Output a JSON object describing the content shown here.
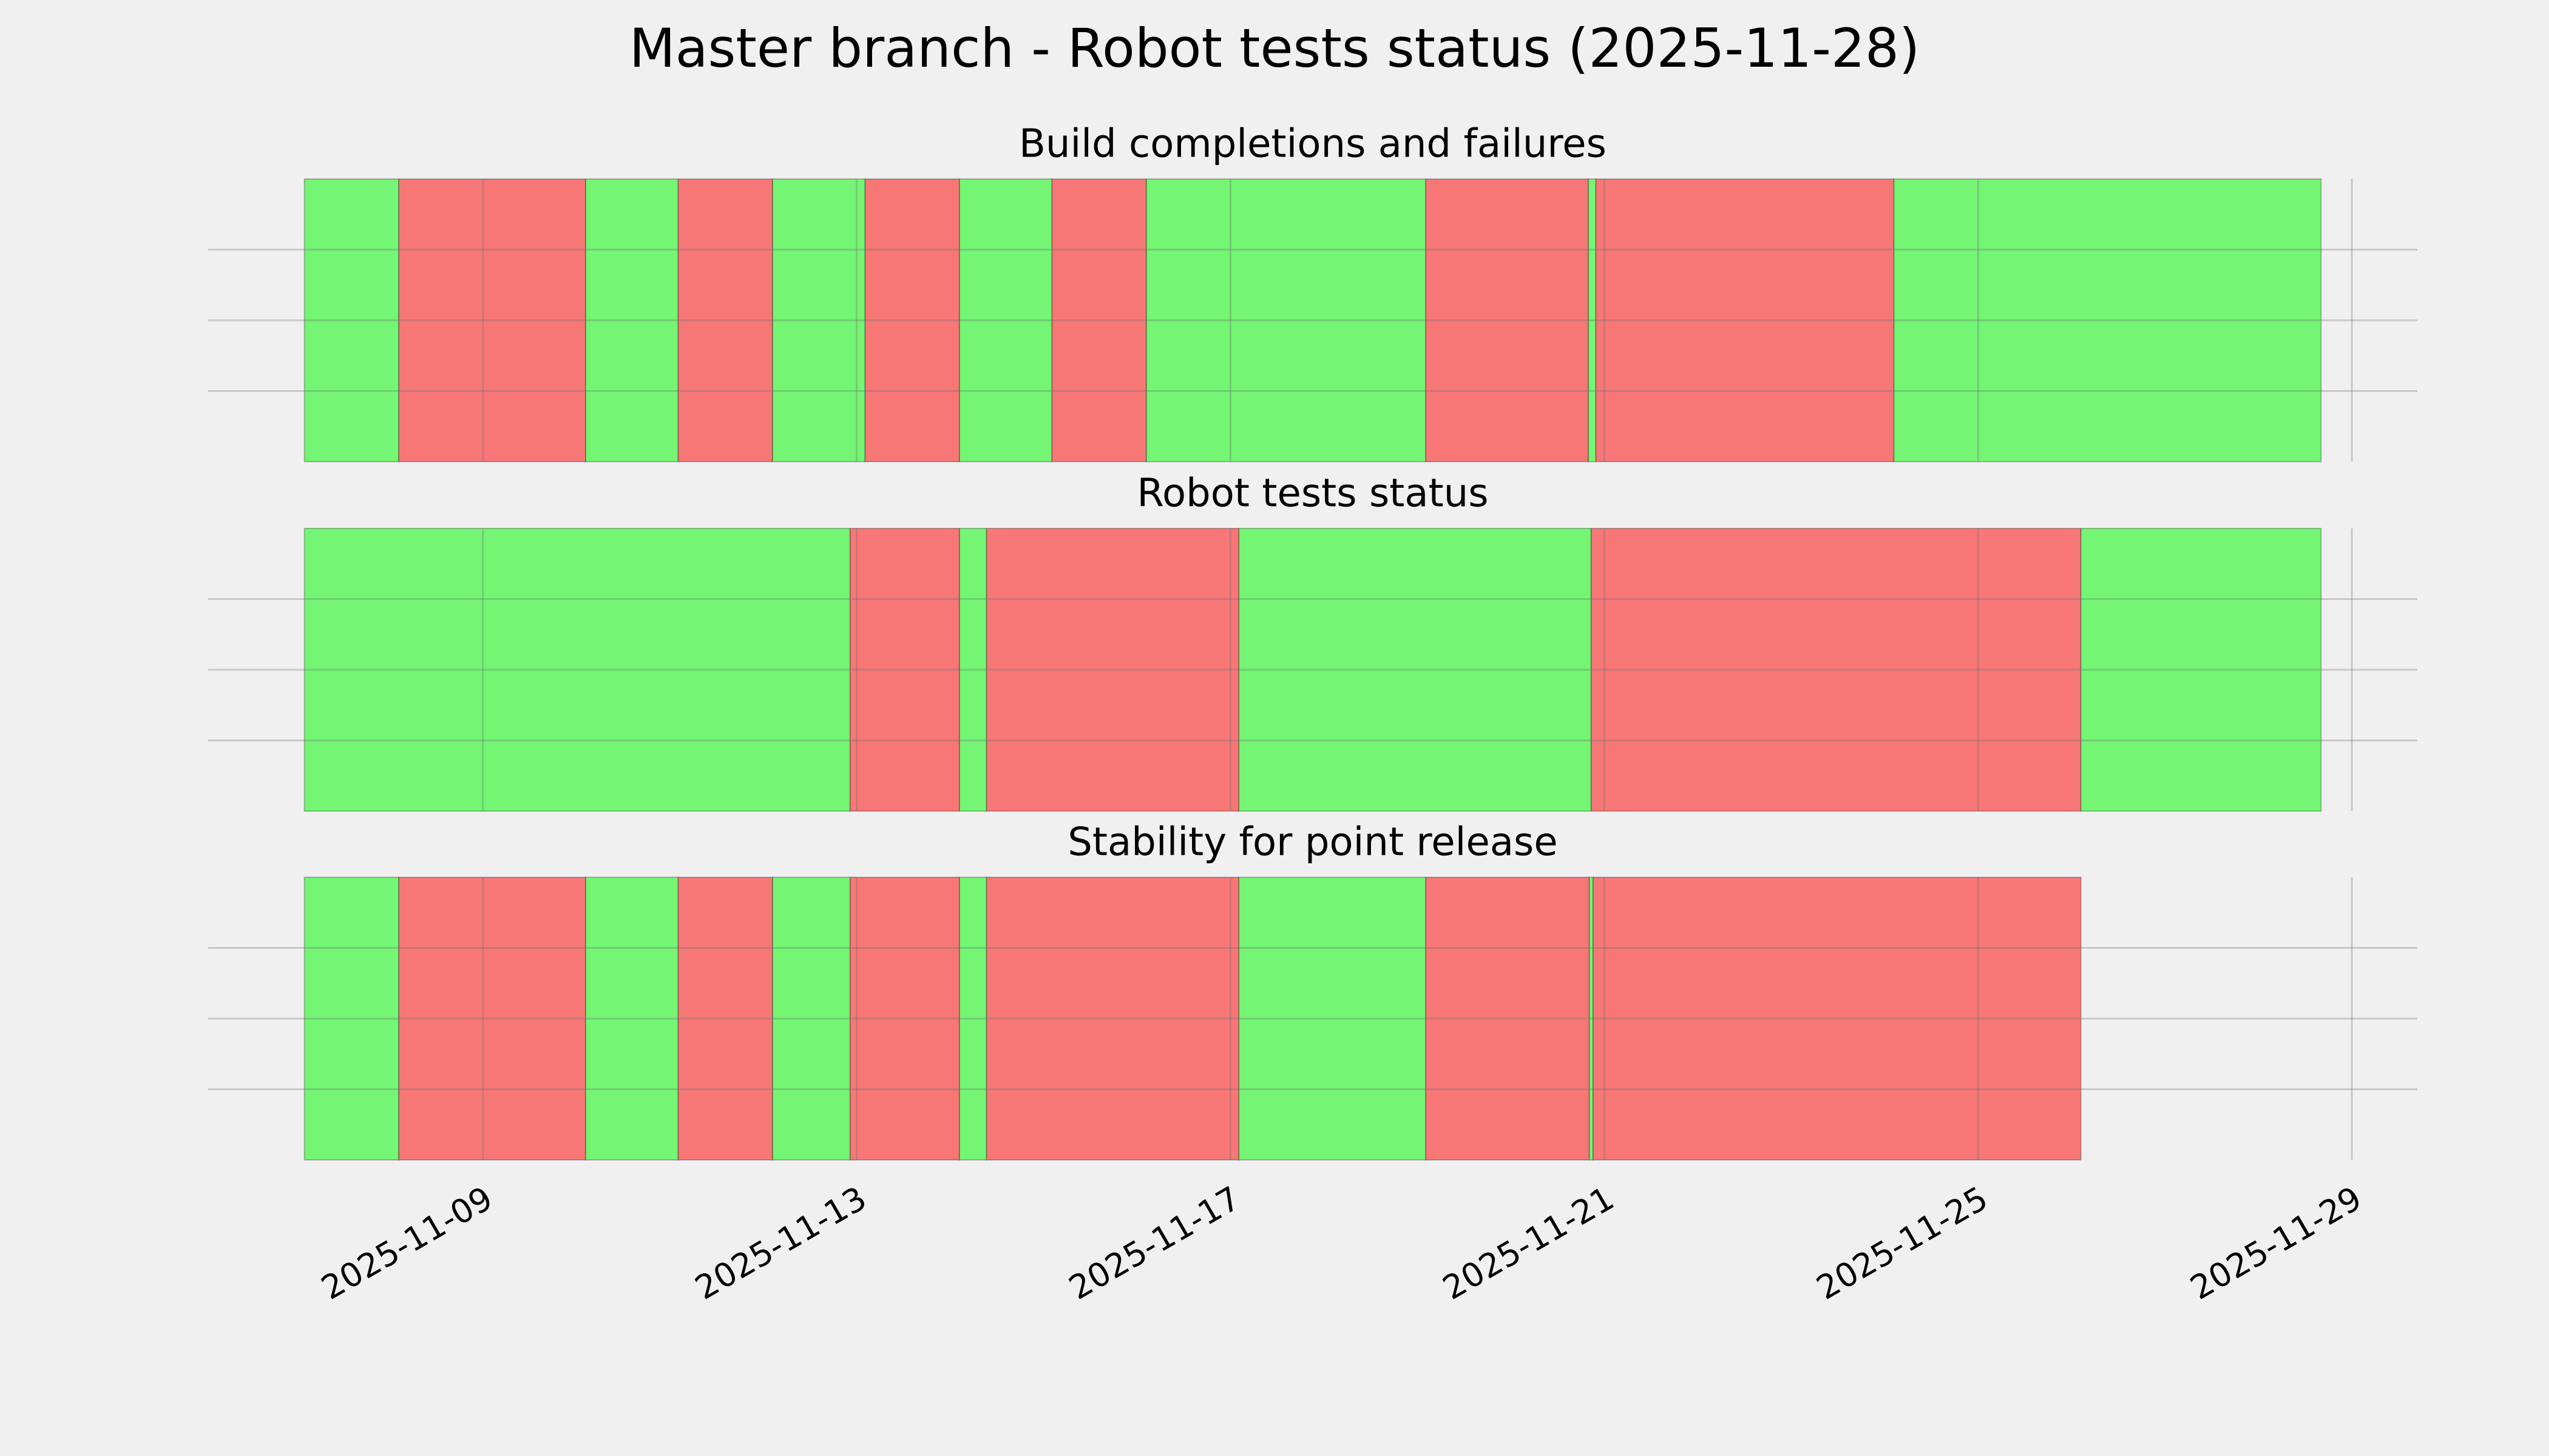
{
  "title": "Master branch - Robot tests status (2025-11-28)",
  "chart_data": [
    {
      "type": "timeline",
      "title": "Build completions and failures",
      "starts": [
        7.09,
        8.1,
        10.1,
        11.09,
        12.1,
        13.09,
        14.1,
        15.09,
        16.1,
        19.09,
        20.83,
        20.91,
        24.1
      ],
      "ends": [
        8.1,
        10.1,
        11.09,
        12.1,
        13.09,
        14.1,
        15.09,
        16.1,
        19.09,
        20.83,
        20.91,
        24.1,
        28.67
      ],
      "colors": [
        "#74f574",
        "#f77777",
        "#74f574",
        "#f77777",
        "#74f574",
        "#f77777",
        "#74f574",
        "#f77777",
        "#74f574",
        "#f77777",
        "#74f574",
        "#f77777",
        "#74f574"
      ],
      "xlim": [
        6.06,
        29.7
      ],
      "xticks": [
        {
          "value": 9,
          "label": "2025-11-09"
        },
        {
          "value": 13,
          "label": "2025-11-13"
        },
        {
          "value": 17,
          "label": "2025-11-17"
        },
        {
          "value": 21,
          "label": "2025-11-21"
        },
        {
          "value": 25,
          "label": "2025-11-25"
        },
        {
          "value": 29,
          "label": "2025-11-29"
        }
      ],
      "ylim": [
        0,
        1
      ],
      "yticks": [
        0.25,
        0.5,
        0.75
      ],
      "grid": true
    },
    {
      "type": "timeline",
      "title": "Robot tests status",
      "starts": [
        7.09,
        12.93,
        14.1,
        14.39,
        17.09,
        20.86,
        26.1
      ],
      "ends": [
        12.93,
        14.1,
        14.39,
        17.09,
        20.86,
        26.1,
        28.67
      ],
      "colors": [
        "#74f574",
        "#f77777",
        "#74f574",
        "#f77777",
        "#74f574",
        "#f77777",
        "#74f574"
      ],
      "xlim": [
        6.06,
        29.7
      ],
      "xticks": [
        {
          "value": 9,
          "label": "2025-11-09"
        },
        {
          "value": 13,
          "label": "2025-11-13"
        },
        {
          "value": 17,
          "label": "2025-11-17"
        },
        {
          "value": 21,
          "label": "2025-11-21"
        },
        {
          "value": 25,
          "label": "2025-11-25"
        },
        {
          "value": 29,
          "label": "2025-11-29"
        }
      ],
      "ylim": [
        0,
        1
      ],
      "yticks": [
        0.25,
        0.5,
        0.75
      ],
      "grid": true
    },
    {
      "type": "timeline",
      "title": "Stability for point release",
      "starts": [
        7.09,
        8.1,
        10.1,
        11.09,
        12.1,
        12.93,
        14.1,
        14.39,
        17.09,
        19.09,
        20.84,
        20.88
      ],
      "ends": [
        8.1,
        10.1,
        11.09,
        12.1,
        12.93,
        14.1,
        14.39,
        17.09,
        19.09,
        20.84,
        20.88,
        26.1
      ],
      "colors": [
        "#74f574",
        "#f77777",
        "#74f574",
        "#f77777",
        "#74f574",
        "#f77777",
        "#74f574",
        "#f77777",
        "#74f574",
        "#f77777",
        "#74f574",
        "#f77777"
      ],
      "xlim": [
        6.06,
        29.7
      ],
      "xticks": [
        {
          "value": 9,
          "label": "2025-11-09"
        },
        {
          "value": 13,
          "label": "2025-11-13"
        },
        {
          "value": 17,
          "label": "2025-11-17"
        },
        {
          "value": 21,
          "label": "2025-11-21"
        },
        {
          "value": 25,
          "label": "2025-11-25"
        },
        {
          "value": 29,
          "label": "2025-11-29"
        }
      ],
      "ylim": [
        0,
        1
      ],
      "yticks": [
        0.25,
        0.5,
        0.75
      ],
      "grid": true,
      "show_xtick_labels": true
    }
  ]
}
